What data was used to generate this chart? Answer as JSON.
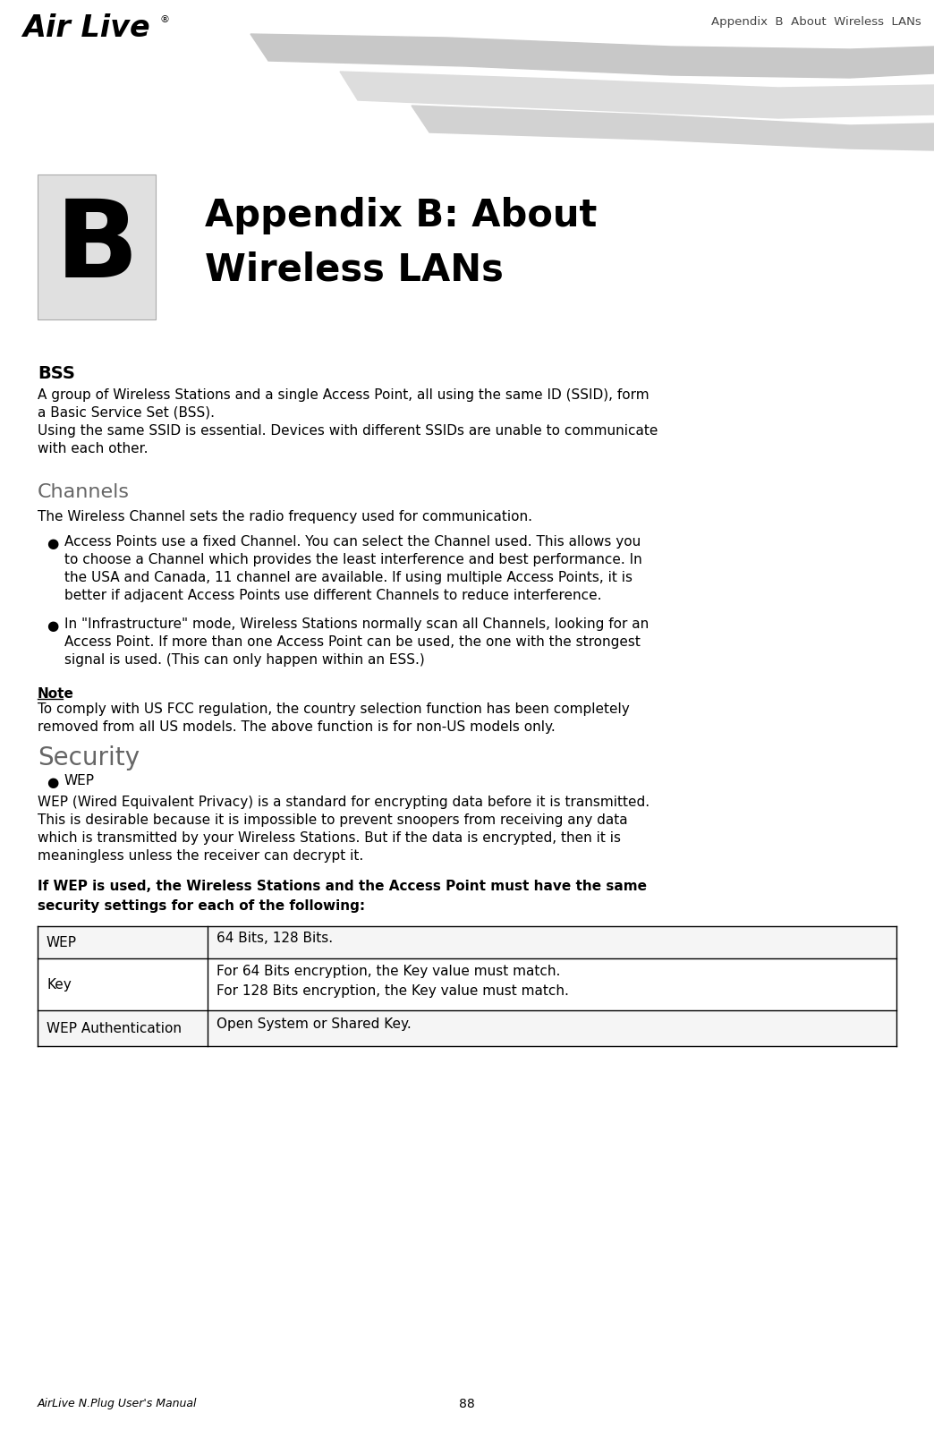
{
  "page_title_header": "Appendix  B  About  Wireless  LANs",
  "appendix_letter": "B",
  "appendix_title_line1": "Appendix B: About",
  "appendix_title_line2": "Wireless LANs",
  "section_bss_title": "BSS",
  "section_bss_body": "A group of Wireless Stations and a single Access Point, all using the same ID (SSID), form\na Basic Service Set (BSS).\nUsing the same SSID is essential. Devices with different SSIDs are unable to communicate\nwith each other.",
  "section_channels_title": "Channels",
  "section_channels_intro": "The Wireless Channel sets the radio frequency used for communication.",
  "bullet1": "Access Points use a fixed Channel. You can select the Channel used. This allows you\nto choose a Channel which provides the least interference and best performance. In\nthe USA and Canada, 11 channel are available. If using multiple Access Points, it is\nbetter if adjacent Access Points use different Channels to reduce interference.",
  "bullet2": "In \"Infrastructure\" mode, Wireless Stations normally scan all Channels, looking for an\nAccess Point. If more than one Access Point can be used, the one with the strongest\nsignal is used. (This can only happen within an ESS.)",
  "note_title": "Note",
  "note_body": "To comply with US FCC regulation, the country selection function has been completely\nremoved from all US models. The above function is for non-US models only.",
  "section_security_title": "Security",
  "security_bullet": "WEP",
  "wep_body": "WEP (Wired Equivalent Privacy) is a standard for encrypting data before it is transmitted.\nThis is desirable because it is impossible to prevent snoopers from receiving any data\nwhich is transmitted by your Wireless Stations. But if the data is encrypted, then it is\nmeaningless unless the receiver can decrypt it.",
  "bold_statement": "If WEP is used, the Wireless Stations and the Access Point must have the same\nsecurity settings for each of the following:",
  "table_rows": [
    [
      "WEP",
      "64 Bits, 128 Bits."
    ],
    [
      "Key",
      "For 64 Bits encryption, the Key value must match.\nFor 128 Bits encryption, the Key value must match."
    ],
    [
      "WEP Authentication",
      "Open System or Shared Key."
    ]
  ],
  "footer_manual": "AirLive N.Plug User's Manual",
  "footer_page": "88",
  "bg_color": "#ffffff",
  "box_bg": "#e0e0e0",
  "swoosh_color1": "#c8c8c8",
  "swoosh_color2": "#dddddd",
  "swoosh_color3": "#d2d2d2"
}
